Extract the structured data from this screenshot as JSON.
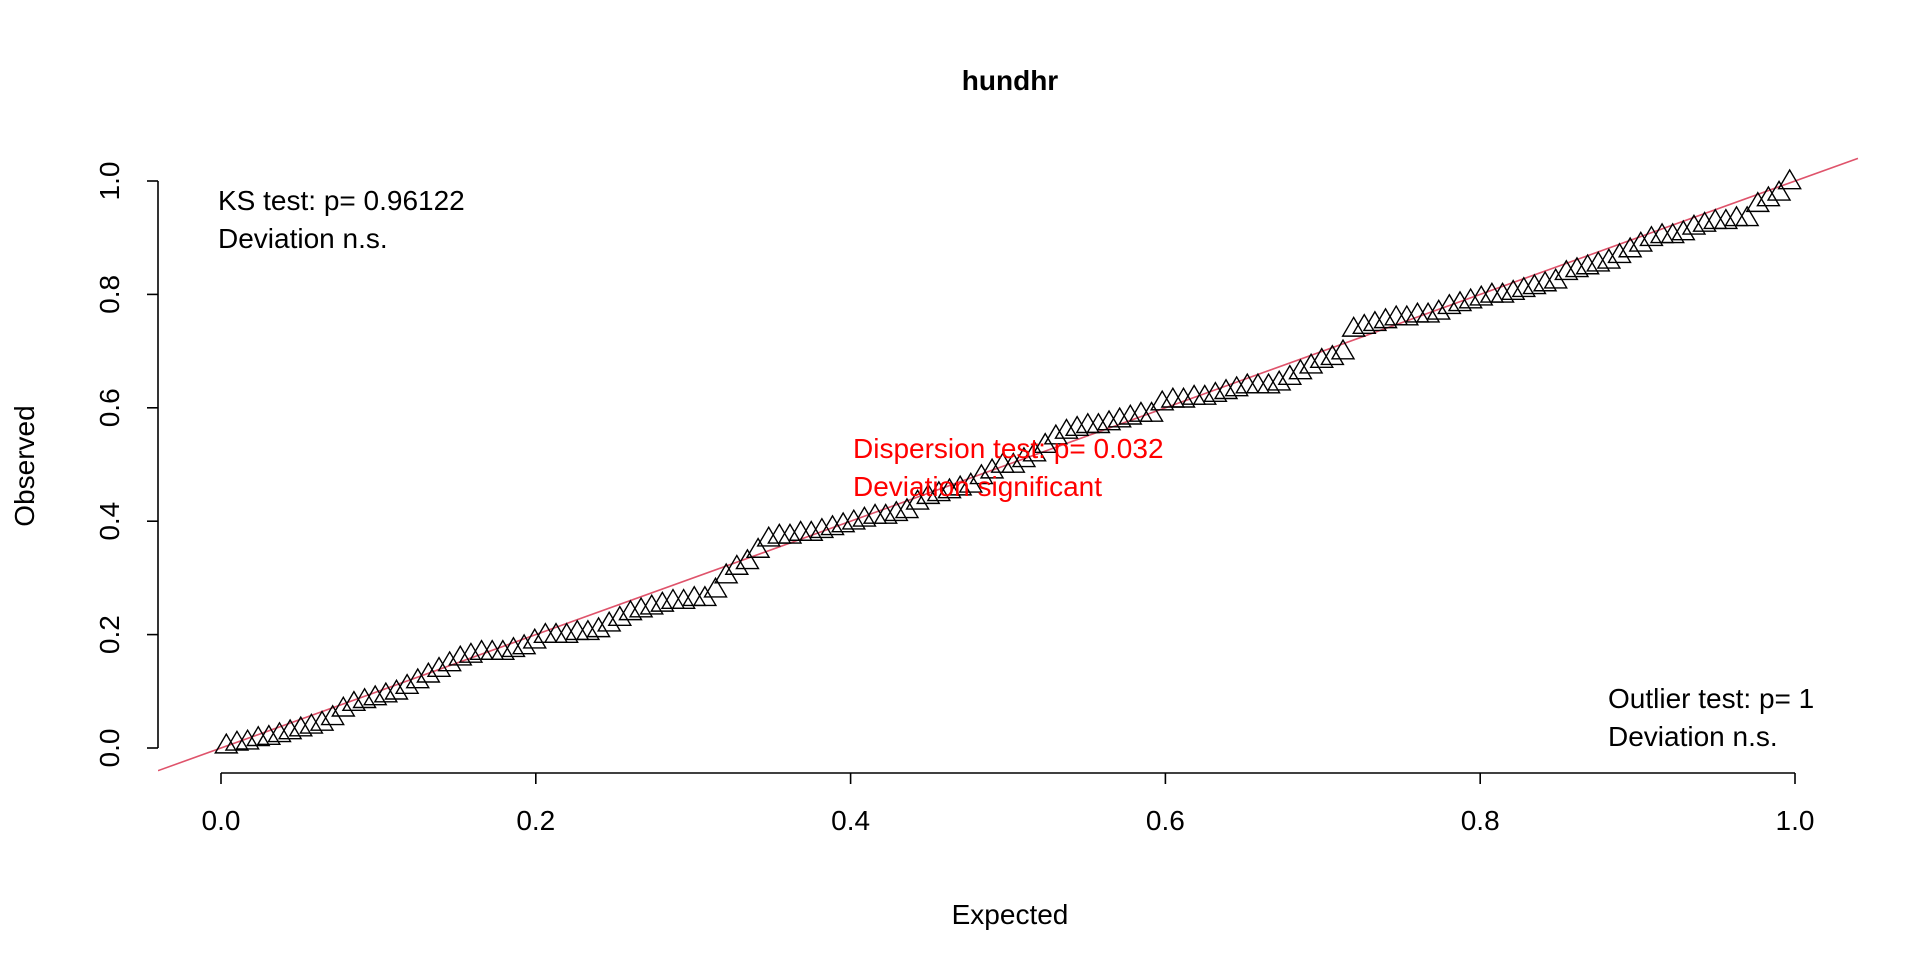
{
  "chart_data": {
    "type": "scatter",
    "title": "hundhr",
    "xlabel": "Expected",
    "ylabel": "Observed",
    "xlim": [
      0,
      1
    ],
    "ylim": [
      0,
      1
    ],
    "x_ticks": [
      "0.0",
      "0.2",
      "0.4",
      "0.6",
      "0.8",
      "1.0"
    ],
    "y_ticks": [
      "0.0",
      "0.2",
      "0.4",
      "0.6",
      "0.8",
      "1.0"
    ],
    "grid": false,
    "marker": "triangle-open",
    "reference_line": {
      "slope": 1,
      "intercept": 0,
      "color": "#DF536B"
    },
    "annotations": {
      "ks": {
        "line1": "KS test: p= 0.96122",
        "line2": "Deviation  n.s.",
        "color": "#000000"
      },
      "dispersion": {
        "line1": "Dispersion test: p= 0.032",
        "line2": "Deviation  significant",
        "color": "#FF0000"
      },
      "outlier": {
        "line1": "Outlier test: p= 1",
        "line2": "Deviation  n.s.",
        "color": "#000000"
      }
    },
    "observed": [
      0.005,
      0.01,
      0.012,
      0.018,
      0.02,
      0.025,
      0.03,
      0.035,
      0.04,
      0.045,
      0.055,
      0.07,
      0.08,
      0.085,
      0.09,
      0.095,
      0.1,
      0.11,
      0.12,
      0.13,
      0.14,
      0.15,
      0.16,
      0.165,
      0.17,
      0.17,
      0.17,
      0.175,
      0.18,
      0.19,
      0.2,
      0.2,
      0.2,
      0.205,
      0.205,
      0.21,
      0.22,
      0.23,
      0.24,
      0.245,
      0.25,
      0.255,
      0.26,
      0.26,
      0.265,
      0.265,
      0.28,
      0.305,
      0.32,
      0.33,
      0.35,
      0.37,
      0.375,
      0.375,
      0.38,
      0.38,
      0.385,
      0.39,
      0.395,
      0.4,
      0.405,
      0.41,
      0.41,
      0.415,
      0.42,
      0.435,
      0.445,
      0.45,
      0.455,
      0.46,
      0.465,
      0.48,
      0.49,
      0.5,
      0.5,
      0.51,
      0.52,
      0.535,
      0.55,
      0.56,
      0.565,
      0.57,
      0.57,
      0.575,
      0.58,
      0.585,
      0.59,
      0.59,
      0.61,
      0.615,
      0.615,
      0.62,
      0.62,
      0.625,
      0.63,
      0.635,
      0.64,
      0.64,
      0.64,
      0.645,
      0.655,
      0.665,
      0.675,
      0.685,
      0.69,
      0.7,
      0.74,
      0.745,
      0.75,
      0.755,
      0.76,
      0.76,
      0.765,
      0.765,
      0.77,
      0.78,
      0.785,
      0.79,
      0.795,
      0.8,
      0.8,
      0.805,
      0.81,
      0.815,
      0.82,
      0.825,
      0.84,
      0.845,
      0.85,
      0.855,
      0.86,
      0.87,
      0.88,
      0.89,
      0.9,
      0.905,
      0.905,
      0.91,
      0.92,
      0.925,
      0.93,
      0.93,
      0.935,
      0.935,
      0.96,
      0.97,
      0.98,
      1.0
    ]
  }
}
